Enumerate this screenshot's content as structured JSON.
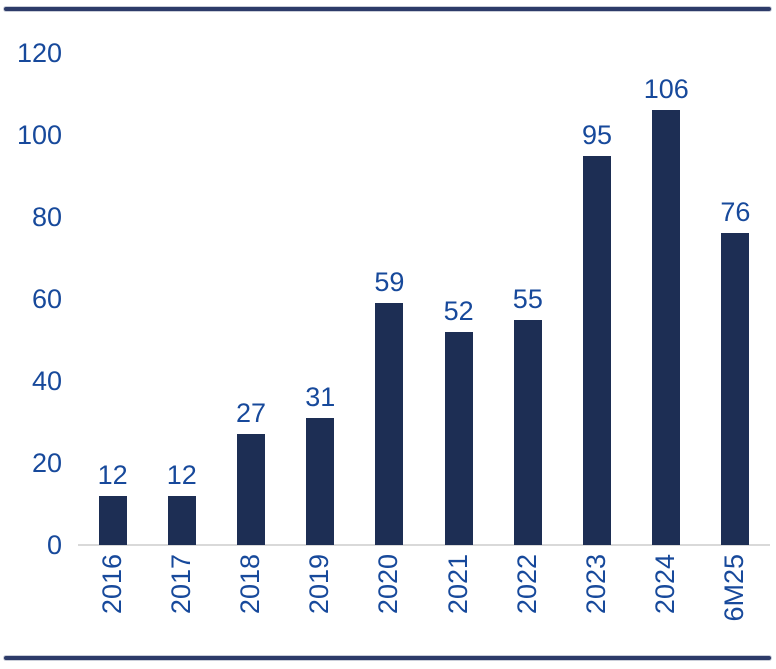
{
  "chart_data": {
    "type": "bar",
    "title": "",
    "xlabel": "",
    "ylabel": "",
    "categories": [
      "2016",
      "2017",
      "2018",
      "2019",
      "2020",
      "2021",
      "2022",
      "2023",
      "2024",
      "6M25"
    ],
    "values": [
      12,
      12,
      27,
      31,
      59,
      52,
      55,
      95,
      106,
      76
    ],
    "ylim": [
      0,
      120
    ],
    "yticks": [
      0,
      20,
      40,
      60,
      80,
      100,
      120
    ],
    "grid": false,
    "legend": false,
    "data_labels_shown": true,
    "x_labels_rotated_degrees": 90,
    "bar_color": "#1D2E54",
    "label_color": "#17499B",
    "axis_line_color": "#D9D9D9",
    "border_rule_color": "#2D3B69"
  }
}
